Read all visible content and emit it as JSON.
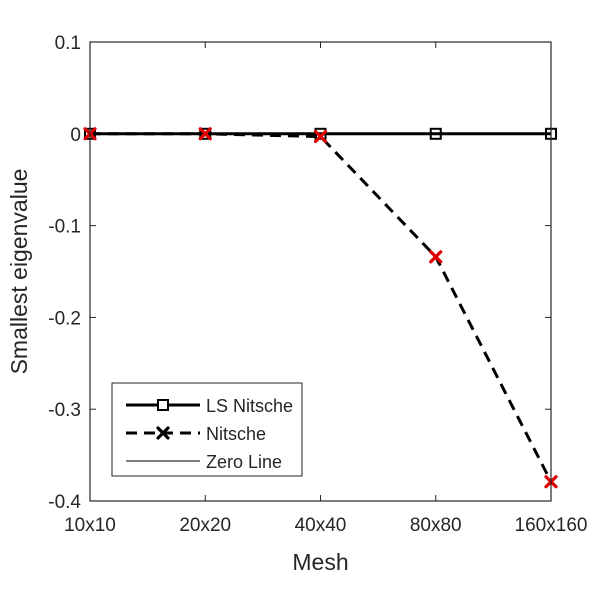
{
  "chart_data": {
    "type": "line",
    "title": "",
    "xlabel": "Mesh",
    "ylabel": "Smallest eigenvalue",
    "categories": [
      "10x10",
      "20x20",
      "40x40",
      "80x80",
      "160x160"
    ],
    "ylim": [
      -0.4,
      0.1
    ],
    "yticks": [
      0.1,
      0,
      -0.1,
      -0.2,
      -0.3,
      -0.4
    ],
    "ytick_labels": [
      "0.1",
      "0",
      "-0.1",
      "-0.2",
      "-0.3",
      "-0.4"
    ],
    "grid": false,
    "legend_position": "bottom-left",
    "series": [
      {
        "name": "LS Nitsche",
        "values": [
          0,
          0,
          0,
          0,
          0
        ],
        "line_style": "solid",
        "marker": "square",
        "color": "#000000"
      },
      {
        "name": "Nitsche",
        "values": [
          0,
          0,
          -0.003,
          -0.134,
          -0.379
        ],
        "line_style": "dashed",
        "marker": "x",
        "color": "#000000",
        "marker_color": "#e00000"
      },
      {
        "name": "Zero Line",
        "values": [
          0,
          0,
          0,
          0,
          0
        ],
        "line_style": "thin-solid",
        "marker": "none",
        "color": "#000000"
      }
    ]
  }
}
